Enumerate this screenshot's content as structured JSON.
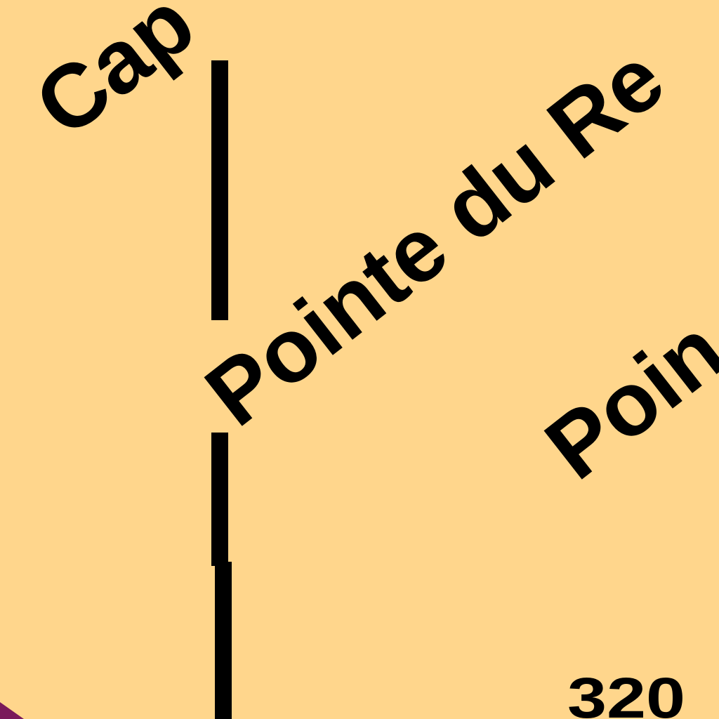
{
  "map": {
    "background_color": "#ffd68c",
    "line_color": "#000000",
    "edge_color": "#7a1a5a",
    "labels": {
      "cap": "Cap",
      "pointe_du_re": "Pointe du Re",
      "poin": "Poin",
      "elevation": "320"
    }
  }
}
